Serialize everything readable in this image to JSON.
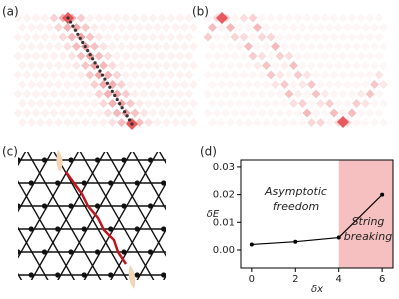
{
  "panel_labels": [
    "(a)",
    "(b)",
    "(c)",
    "(d)"
  ],
  "chart_data": {
    "type": "line",
    "x_label": "δx",
    "y_label": "δE",
    "x": [
      0,
      2,
      4,
      6
    ],
    "series": [
      {
        "color": "#000000",
        "values": [
          0.002,
          0.003,
          0.0045,
          0.02
        ]
      }
    ],
    "xlim": [
      -0.5,
      6.5
    ],
    "xticks": [
      0,
      2,
      4,
      6
    ],
    "ylim": [
      -0.0065,
      0.0325
    ],
    "yticks": [
      {
        "value": 0,
        "label": "0.00"
      },
      {
        "value": 0.01,
        "label": "0.01"
      },
      {
        "value": 0.02,
        "label": "0.02"
      },
      {
        "value": 0.03,
        "label": "0.03"
      }
    ],
    "shade_from": 4,
    "shade_color": "#f6c0c0",
    "annotations": [
      "Asymptotic",
      "freedom",
      "String",
      "breaking"
    ]
  }
}
